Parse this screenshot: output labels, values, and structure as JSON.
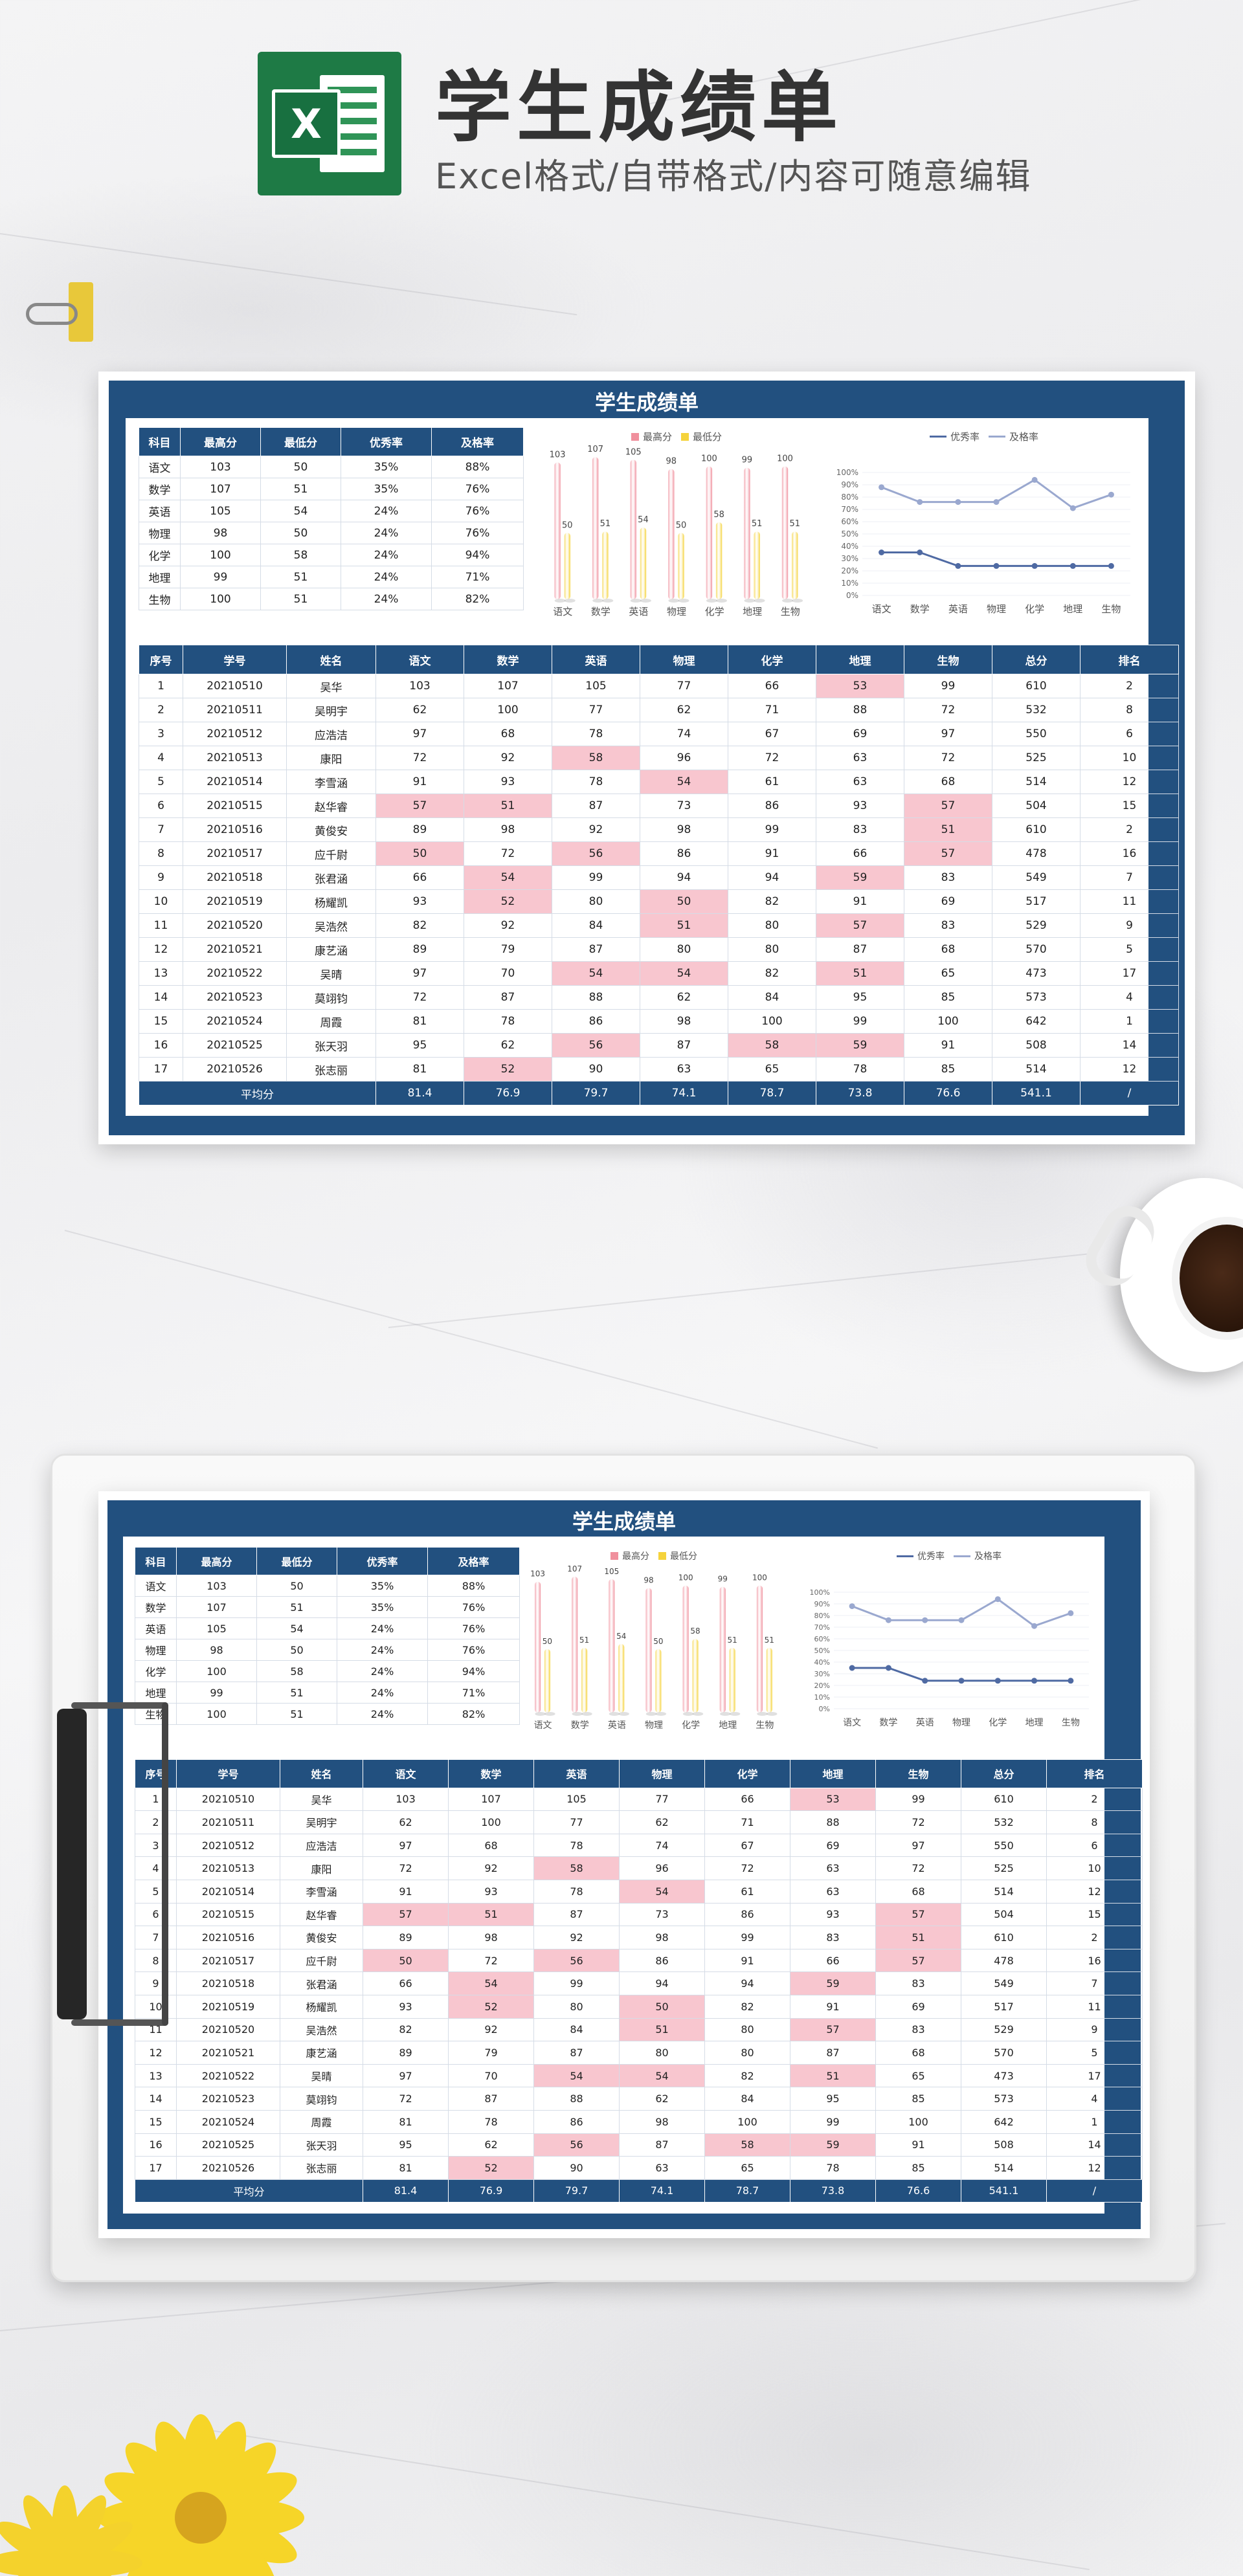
{
  "header": {
    "title": "学生成绩单",
    "subtitle": "Excel格式/自带格式/内容可随意编辑",
    "logo_letter": "X"
  },
  "sheet_title": "学生成绩单",
  "summary": {
    "headers": [
      "科目",
      "最高分",
      "最低分",
      "优秀率",
      "及格率"
    ],
    "rows": [
      [
        "语文",
        "103",
        "50",
        "35%",
        "88%"
      ],
      [
        "数学",
        "107",
        "51",
        "35%",
        "76%"
      ],
      [
        "英语",
        "105",
        "54",
        "24%",
        "76%"
      ],
      [
        "物理",
        "98",
        "50",
        "24%",
        "76%"
      ],
      [
        "化学",
        "100",
        "58",
        "24%",
        "94%"
      ],
      [
        "地理",
        "99",
        "51",
        "24%",
        "71%"
      ],
      [
        "生物",
        "100",
        "51",
        "24%",
        "82%"
      ]
    ]
  },
  "main": {
    "headers": [
      "序号",
      "学号",
      "姓名",
      "语文",
      "数学",
      "英语",
      "物理",
      "化学",
      "地理",
      "生物",
      "总分",
      "排名"
    ],
    "rows": [
      [
        "1",
        "20210510",
        "吴华",
        "103",
        "107",
        "105",
        "77",
        "66",
        "53",
        "99",
        "610",
        "2"
      ],
      [
        "2",
        "20210511",
        "吴明宇",
        "62",
        "100",
        "77",
        "62",
        "71",
        "88",
        "72",
        "532",
        "8"
      ],
      [
        "3",
        "20210512",
        "应浩洁",
        "97",
        "68",
        "78",
        "74",
        "67",
        "69",
        "97",
        "550",
        "6"
      ],
      [
        "4",
        "20210513",
        "康阳",
        "72",
        "92",
        "58",
        "96",
        "72",
        "63",
        "72",
        "525",
        "10"
      ],
      [
        "5",
        "20210514",
        "李雪涵",
        "91",
        "93",
        "78",
        "54",
        "61",
        "63",
        "68",
        "514",
        "12"
      ],
      [
        "6",
        "20210515",
        "赵华睿",
        "57",
        "51",
        "87",
        "73",
        "86",
        "93",
        "57",
        "504",
        "15"
      ],
      [
        "7",
        "20210516",
        "黄俊安",
        "89",
        "98",
        "92",
        "98",
        "99",
        "83",
        "51",
        "610",
        "2"
      ],
      [
        "8",
        "20210517",
        "应千尉",
        "50",
        "72",
        "56",
        "86",
        "91",
        "66",
        "57",
        "478",
        "16"
      ],
      [
        "9",
        "20210518",
        "张君涵",
        "66",
        "54",
        "99",
        "94",
        "94",
        "59",
        "83",
        "549",
        "7"
      ],
      [
        "10",
        "20210519",
        "杨耀凯",
        "93",
        "52",
        "80",
        "50",
        "82",
        "91",
        "69",
        "517",
        "11"
      ],
      [
        "11",
        "20210520",
        "吴浩然",
        "82",
        "92",
        "84",
        "51",
        "80",
        "57",
        "83",
        "529",
        "9"
      ],
      [
        "12",
        "20210521",
        "康艺涵",
        "89",
        "79",
        "87",
        "80",
        "80",
        "87",
        "68",
        "570",
        "5"
      ],
      [
        "13",
        "20210522",
        "吴晴",
        "97",
        "70",
        "54",
        "54",
        "82",
        "51",
        "65",
        "473",
        "17"
      ],
      [
        "14",
        "20210523",
        "莫翊钧",
        "72",
        "87",
        "88",
        "62",
        "84",
        "95",
        "85",
        "573",
        "4"
      ],
      [
        "15",
        "20210524",
        "周霞",
        "81",
        "78",
        "86",
        "98",
        "100",
        "99",
        "100",
        "642",
        "1"
      ],
      [
        "16",
        "20210525",
        "张天羽",
        "95",
        "62",
        "56",
        "87",
        "58",
        "59",
        "91",
        "508",
        "14"
      ],
      [
        "17",
        "20210526",
        "张志丽",
        "81",
        "52",
        "90",
        "63",
        "65",
        "78",
        "85",
        "514",
        "12"
      ]
    ],
    "average": [
      "平均分",
      "81.4",
      "76.9",
      "79.7",
      "74.1",
      "78.7",
      "73.8",
      "76.6",
      "541.1",
      "/"
    ]
  },
  "chart_data": [
    {
      "type": "bar",
      "title": "",
      "categories": [
        "语文",
        "数学",
        "英语",
        "物理",
        "化学",
        "地理",
        "生物"
      ],
      "series": [
        {
          "name": "最高分",
          "values": [
            103,
            107,
            105,
            98,
            100,
            99,
            100
          ],
          "color": "#f0909d"
        },
        {
          "name": "最低分",
          "values": [
            50,
            51,
            54,
            50,
            58,
            51,
            51
          ],
          "color": "#f5d33c"
        }
      ],
      "ylim": [
        0,
        110
      ],
      "legend": "top-center"
    },
    {
      "type": "line",
      "title": "",
      "categories": [
        "语文",
        "数学",
        "英语",
        "物理",
        "化学",
        "地理",
        "生物"
      ],
      "series": [
        {
          "name": "优秀率",
          "values": [
            35,
            35,
            24,
            24,
            24,
            24,
            24
          ],
          "color": "#4f6aa3"
        },
        {
          "name": "及格率",
          "values": [
            88,
            76,
            76,
            76,
            94,
            71,
            82
          ],
          "color": "#9aa8cf"
        }
      ],
      "yticks": [
        "100%",
        "90%",
        "80%",
        "70%",
        "60%",
        "50%",
        "40%",
        "30%",
        "20%",
        "10%",
        "0%"
      ],
      "ylim": [
        0,
        100
      ],
      "legend": "top-center"
    }
  ],
  "colors": {
    "navy": "#22507f",
    "pink_cell": "#f8c6cf"
  }
}
